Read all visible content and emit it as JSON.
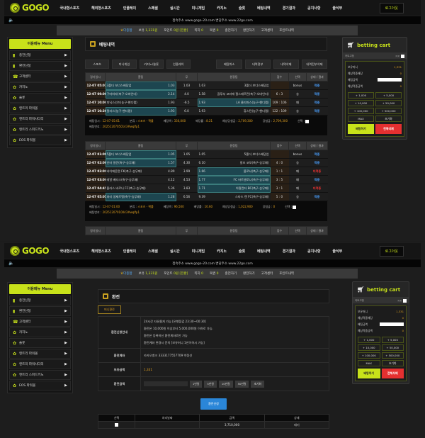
{
  "header": {
    "logo": "GOGO",
    "nav": [
      "국내형스포츠",
      "해외형스포츠",
      "인플레이",
      "스페셜",
      "실시간",
      "미니게임",
      "카지노",
      "슬롯",
      "베팅내역",
      "경기결과",
      "공지사항",
      "출석부"
    ],
    "logout": "로그아웃",
    "notice": "접속주소 www.gogo-20.com 변담주소 www.22go.com"
  },
  "userbar": {
    "user": "다종합",
    "balance_label": "보유",
    "balance": "1,331원",
    "point_label": "포인트",
    "point": "0원 [전환]",
    "note_label": "쪽지",
    "note": "0",
    "coupon_label": "복권",
    "coupon": "0",
    "links": [
      "충전하기",
      "환전하기",
      "고객센터",
      "포인트내역"
    ]
  },
  "menu": {
    "title": "이용메뉴 Menu",
    "items": [
      {
        "label": "충전신청",
        "icon": "wallet-icon"
      },
      {
        "label": "환전신청",
        "icon": "wallet-icon"
      },
      {
        "label": "고객센터",
        "icon": "headset-icon"
      },
      {
        "label": "카지노",
        "icon": "gear-icon"
      },
      {
        "label": "슬롯",
        "icon": "gear-icon"
      },
      {
        "label": "엔트리 파워볼",
        "icon": "gear-icon"
      },
      {
        "label": "엔트리 파워사다리",
        "icon": "gear-icon"
      },
      {
        "label": "엔트리 스피드키노",
        "icon": "gear-icon"
      },
      {
        "label": "EOS 파워볼",
        "icon": "gear-icon"
      }
    ]
  },
  "history": {
    "title": "베팅내역",
    "tabs_left": [
      "스포츠",
      "미니게임",
      "카지노/슬롯",
      "인플레이"
    ],
    "tabs_right": [
      "베팅취소",
      "내역정부",
      "내역삭제",
      "내역전부삭제"
    ],
    "columns": [
      "경기일시",
      "홈팀",
      "무",
      "원정팀",
      "점수",
      "선택",
      "상태 / 결과"
    ],
    "summary_labels": {
      "time": "베팅일시",
      "category": "분류",
      "amount": "베팅액",
      "odds": "배당률",
      "expected": "예상당첨금",
      "win": "당첨금",
      "select": "선택",
      "ticket": "베팅번호"
    },
    "bets": [
      {
        "rows": [
          {
            "date": "12-07 05:01",
            "home": "3폴더 보너스배당업",
            "home_odds": "1.03",
            "draw": "1.03",
            "away_odds": "1.03",
            "away": "3폴더 보너스배당업",
            "score": "",
            "pick": "bonus",
            "result": "적중",
            "sel": "home",
            "status": "win"
          },
          {
            "date": "12-07 09:00",
            "home": "구마비라(축구-오버언더)",
            "home_odds": "2.14",
            "draw": "4.0",
            "away_odds": "1.58",
            "away": "골루부 코리에 필스테르란(축구-오버언더)",
            "score": "6 : 3",
            "pick": "승",
            "result": "적중",
            "sel": "home",
            "status": "win"
          },
          {
            "date": "12-07 10:00",
            "home": "피닉스선즈(농구-핸디캡)",
            "home_odds": "1.93",
            "draw": "-6.5",
            "away_odds": "1.93",
            "away": "LA 클리퍼스(농구-핸디캡)",
            "score": "109 : 106",
            "pick": "패",
            "result": "적중",
            "sel": "away",
            "status": "win"
          },
          {
            "date": "12-07 10:30",
            "home": "필리스(농구-핸디캡)",
            "home_odds": "1.93",
            "draw": "6.0",
            "away_odds": "1.93",
            "away": "휴스턴(농구-핸디캡)",
            "score": "122 : 109",
            "pick": "승",
            "result": "적중",
            "sel": "home",
            "status": "win"
          }
        ],
        "time": "12-07 05:01",
        "category": "스포츠 - 확률",
        "amount": "330,000",
        "odds": "8.21",
        "expected": "2,709,300",
        "win": "2,709,300",
        "ticket": "2025120705014​3#wqlfp1"
      },
      {
        "rows": [
          {
            "date": "12-07 01:00",
            "home": "5폴더 보너스배당업",
            "home_odds": "1.05",
            "draw": "1.05",
            "away_odds": "1.05",
            "away": "5폴더 보너스배당업",
            "score": "",
            "pick": "bonus",
            "result": "적중",
            "sel": "home",
            "status": "win"
          },
          {
            "date": "12-07 02:00",
            "home": "인터 밀란(축구-승무패)",
            "home_odds": "1.57",
            "draw": "4.30",
            "away_odds": "6.10",
            "away": "칼초 코모(축구-승무패)",
            "score": "4 : 0",
            "pick": "승",
            "result": "적중",
            "sel": "home",
            "status": "win"
          },
          {
            "date": "12-07 02:00",
            "home": "바이에른뮌 FK(축구-승무패)",
            "home_odds": "4.89",
            "draw": "3.99",
            "away_odds": "1.66",
            "away": "볼로냐(축구-승무패)",
            "score": "1 : 1",
            "pick": "패",
            "result": "미적중",
            "sel": "away",
            "status": "lose"
          },
          {
            "date": "12-07 03:00",
            "home": "레알 베티스(축구-승무패)",
            "home_odds": "4.12",
            "draw": "4.53",
            "away_odds": "1.77",
            "away": "FC 바르셀로나(축구-승무패)",
            "score": "3 : 5",
            "pick": "패",
            "result": "적중",
            "sel": "away",
            "status": "win"
          },
          {
            "date": "12-07 04:45",
            "home": "올라스 바르나 FC(축구-승무패)",
            "home_odds": "5.36",
            "draw": "3.83",
            "away_odds": "1.71",
            "away": "아탈란타 BC(축구-승무패)",
            "score": "3 : 1",
            "pick": "패",
            "result": "미적중",
            "sel": "away",
            "status": "lose"
          },
          {
            "date": "12-07 05:05",
            "home": "파리 생제르맹(축구-승무패)",
            "home_odds": "1.28",
            "draw": "6.56",
            "away_odds": "9.39",
            "away": "스타드 렌 FC(축구-승무패)",
            "score": "5 : 0",
            "pick": "승",
            "result": "적중",
            "sel": "home",
            "status": "win"
          }
        ],
        "time": "12-07 01:00",
        "category": "스포츠 - 확률",
        "amount": "96,500",
        "odds": "10.60",
        "expected": "1,022,900",
        "win": "0",
        "ticket": "20251207010043#wqlfp1"
      }
    ]
  },
  "cart": {
    "title": "betting cart",
    "fixed_label": "카트고정",
    "fixed_value": "FIX",
    "balance_label": "보유머니",
    "balance": "1,331",
    "odds_label": "예상적중배당",
    "odds": "0",
    "bet_label": "배팅금액",
    "expected_label": "예상적중금액",
    "expected": "0",
    "amount_buttons": [
      "+ 1,000",
      "+ 5,000",
      "+ 10,000",
      "+ 50,000",
      "+ 100,000",
      "+ 500,000",
      "MAX",
      "초기화"
    ],
    "bet_button": "배팅하기",
    "delete_button": "전체삭제",
    "accent": "#c8e21a"
  },
  "exchange": {
    "title": "환전",
    "subtab": "머니환전",
    "guide_label": "환전신청안내",
    "guide_lines": [
      "24시간 자유롭게 가능 [은행점검 23:30~00:30]",
      "환전은 10,000원 이상부터 5,000,000원 이하로 가능.",
      "환전은 등록하신 환전계좌로만 가능",
      "환전계좌 변경시 문의 [보유머니 1만이하시 가능]"
    ],
    "account_label": "환전계좌",
    "account": "카카오뱅크 3333177557709 박정선",
    "balance_label": "보유금액",
    "balance": "1,331",
    "amount_label": "환전금액",
    "amount_buttons": [
      "1만원",
      "5만원",
      "10만원",
      "50만원",
      "초기화"
    ],
    "submit": "환전신청",
    "history_columns": [
      "선택",
      "처리날짜",
      "금액",
      "상태"
    ],
    "history_rows": [
      {
        "date": "",
        "amount": "3,710,000",
        "status": "대기"
      }
    ]
  }
}
